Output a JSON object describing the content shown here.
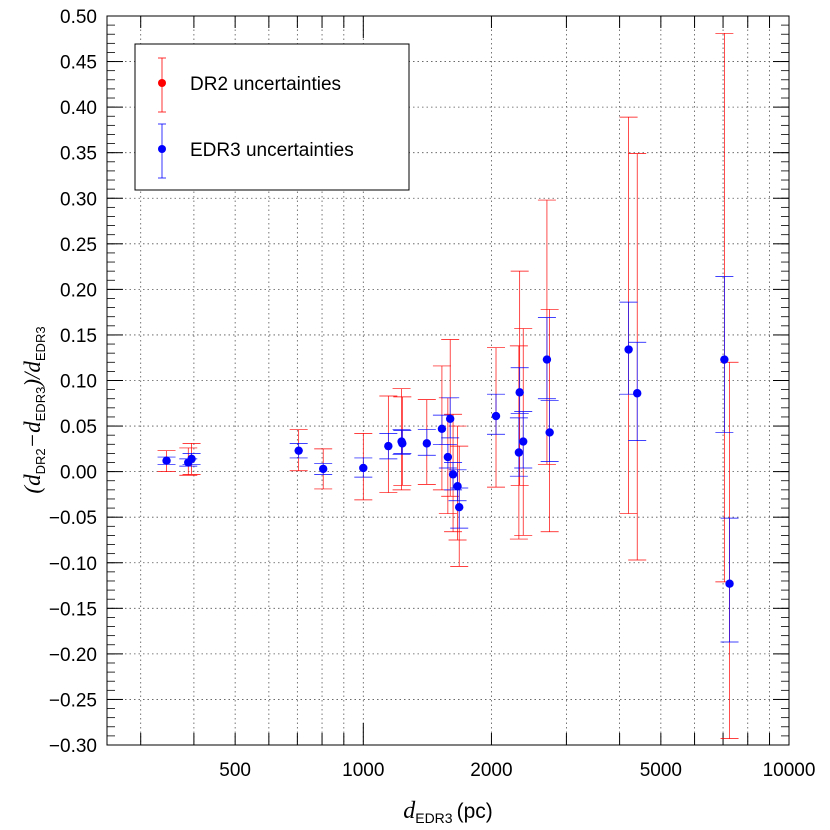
{
  "chart_data": {
    "type": "scatter",
    "xscale": "log",
    "xlim": [
      250,
      10000
    ],
    "ylim": [
      -0.3,
      0.5
    ],
    "grid": true,
    "legend_position": "top-left",
    "xlabel": {
      "main": "d",
      "sub": "EDR3",
      "unit": "(pc)"
    },
    "ylabel": {
      "p1": "(d",
      "s1": "DR2",
      "p2": "−d",
      "s2": "EDR3",
      "p3": ")/d",
      "s3": "EDR3"
    },
    "x_tick_labels": [
      {
        "value": 500,
        "label": "500"
      },
      {
        "value": 1000,
        "label": "1000"
      },
      {
        "value": 2000,
        "label": "2000"
      },
      {
        "value": 5000,
        "label": "5000"
      },
      {
        "value": 10000,
        "label": "10000"
      }
    ],
    "y_tick_labels": [
      {
        "value": 0.5,
        "label": "0.50"
      },
      {
        "value": 0.45,
        "label": "0.45"
      },
      {
        "value": 0.4,
        "label": "0.40"
      },
      {
        "value": 0.35,
        "label": "0.35"
      },
      {
        "value": 0.3,
        "label": "0.30"
      },
      {
        "value": 0.25,
        "label": "0.25"
      },
      {
        "value": 0.2,
        "label": "0.20"
      },
      {
        "value": 0.15,
        "label": "0.15"
      },
      {
        "value": 0.1,
        "label": "0.10"
      },
      {
        "value": 0.05,
        "label": "0.05"
      },
      {
        "value": 0.0,
        "label": "0.00"
      },
      {
        "value": -0.05,
        "label": "−0.05"
      },
      {
        "value": -0.1,
        "label": "−0.10"
      },
      {
        "value": -0.15,
        "label": "−0.15"
      },
      {
        "value": -0.2,
        "label": "−0.20"
      },
      {
        "value": -0.25,
        "label": "−0.25"
      },
      {
        "value": -0.3,
        "label": "−0.30"
      }
    ],
    "series": [
      {
        "name": "DR2 uncertainties",
        "color": "#ff0000"
      },
      {
        "name": "EDR3 uncertainties",
        "color": "#0000ff"
      }
    ],
    "points": [
      {
        "x": 345,
        "y": 0.012,
        "dr2": [
          0.0,
          0.023
        ],
        "edr3": [
          0.008,
          0.016
        ]
      },
      {
        "x": 388,
        "y": 0.01,
        "dr2": [
          -0.004,
          0.026
        ],
        "edr3": [
          0.006,
          0.014
        ]
      },
      {
        "x": 395,
        "y": 0.014,
        "dr2": [
          -0.003,
          0.031
        ],
        "edr3": [
          0.008,
          0.02
        ]
      },
      {
        "x": 705,
        "y": 0.023,
        "dr2": [
          0.001,
          0.046
        ],
        "edr3": [
          0.015,
          0.031
        ]
      },
      {
        "x": 805,
        "y": 0.003,
        "dr2": [
          -0.019,
          0.025
        ],
        "edr3": [
          -0.003,
          0.009
        ]
      },
      {
        "x": 1000,
        "y": 0.004,
        "dr2": [
          -0.031,
          0.042
        ],
        "edr3": [
          -0.006,
          0.015
        ]
      },
      {
        "x": 1145,
        "y": 0.028,
        "dr2": [
          -0.023,
          0.083
        ],
        "edr3": [
          0.014,
          0.042
        ]
      },
      {
        "x": 1230,
        "y": 0.033,
        "dr2": [
          -0.02,
          0.091
        ],
        "edr3": [
          0.019,
          0.046
        ]
      },
      {
        "x": 1235,
        "y": 0.031,
        "dr2": [
          -0.015,
          0.082
        ],
        "edr3": [
          0.02,
          0.045
        ]
      },
      {
        "x": 1410,
        "y": 0.031,
        "dr2": [
          -0.014,
          0.079
        ],
        "edr3": [
          0.018,
          0.046
        ]
      },
      {
        "x": 1530,
        "y": 0.047,
        "dr2": [
          -0.02,
          0.116
        ],
        "edr3": [
          0.03,
          0.062
        ]
      },
      {
        "x": 1580,
        "y": 0.016,
        "dr2": [
          -0.046,
          0.081
        ],
        "edr3": [
          0.004,
          0.03
        ]
      },
      {
        "x": 1600,
        "y": 0.058,
        "dr2": [
          -0.027,
          0.145
        ],
        "edr3": [
          0.037,
          0.081
        ]
      },
      {
        "x": 1625,
        "y": -0.003,
        "dr2": [
          -0.066,
          0.063
        ],
        "edr3": [
          -0.02,
          0.01
        ]
      },
      {
        "x": 1665,
        "y": -0.016,
        "dr2": [
          -0.075,
          0.05
        ],
        "edr3": [
          -0.032,
          0.002
        ]
      },
      {
        "x": 1680,
        "y": -0.039,
        "dr2": [
          -0.104,
          0.028
        ],
        "edr3": [
          -0.062,
          -0.018
        ]
      },
      {
        "x": 2050,
        "y": 0.061,
        "dr2": [
          -0.017,
          0.136
        ],
        "edr3": [
          0.041,
          0.085
        ]
      },
      {
        "x": 2320,
        "y": 0.021,
        "dr2": [
          -0.074,
          0.138
        ],
        "edr3": [
          -0.005,
          0.059
        ]
      },
      {
        "x": 2330,
        "y": 0.087,
        "dr2": [
          -0.015,
          0.22
        ],
        "edr3": [
          0.064,
          0.114
        ]
      },
      {
        "x": 2375,
        "y": 0.033,
        "dr2": [
          -0.07,
          0.157
        ],
        "edr3": [
          0.004,
          0.066
        ]
      },
      {
        "x": 2700,
        "y": 0.123,
        "dr2": [
          0.008,
          0.298
        ],
        "edr3": [
          0.08,
          0.169
        ]
      },
      {
        "x": 2740,
        "y": 0.043,
        "dr2": [
          -0.066,
          0.178
        ],
        "edr3": [
          0.011,
          0.078
        ]
      },
      {
        "x": 4200,
        "y": 0.134,
        "dr2": [
          -0.046,
          0.389
        ],
        "edr3": [
          0.085,
          0.186
        ]
      },
      {
        "x": 4400,
        "y": 0.086,
        "dr2": [
          -0.097,
          0.349
        ],
        "edr3": [
          0.034,
          0.142
        ]
      },
      {
        "x": 7050,
        "y": 0.123,
        "dr2": [
          -0.121,
          0.481
        ],
        "edr3": [
          0.043,
          0.214
        ]
      },
      {
        "x": 7250,
        "y": -0.123,
        "dr2": [
          -0.293,
          0.12
        ],
        "edr3": [
          -0.187,
          -0.051
        ]
      }
    ]
  }
}
